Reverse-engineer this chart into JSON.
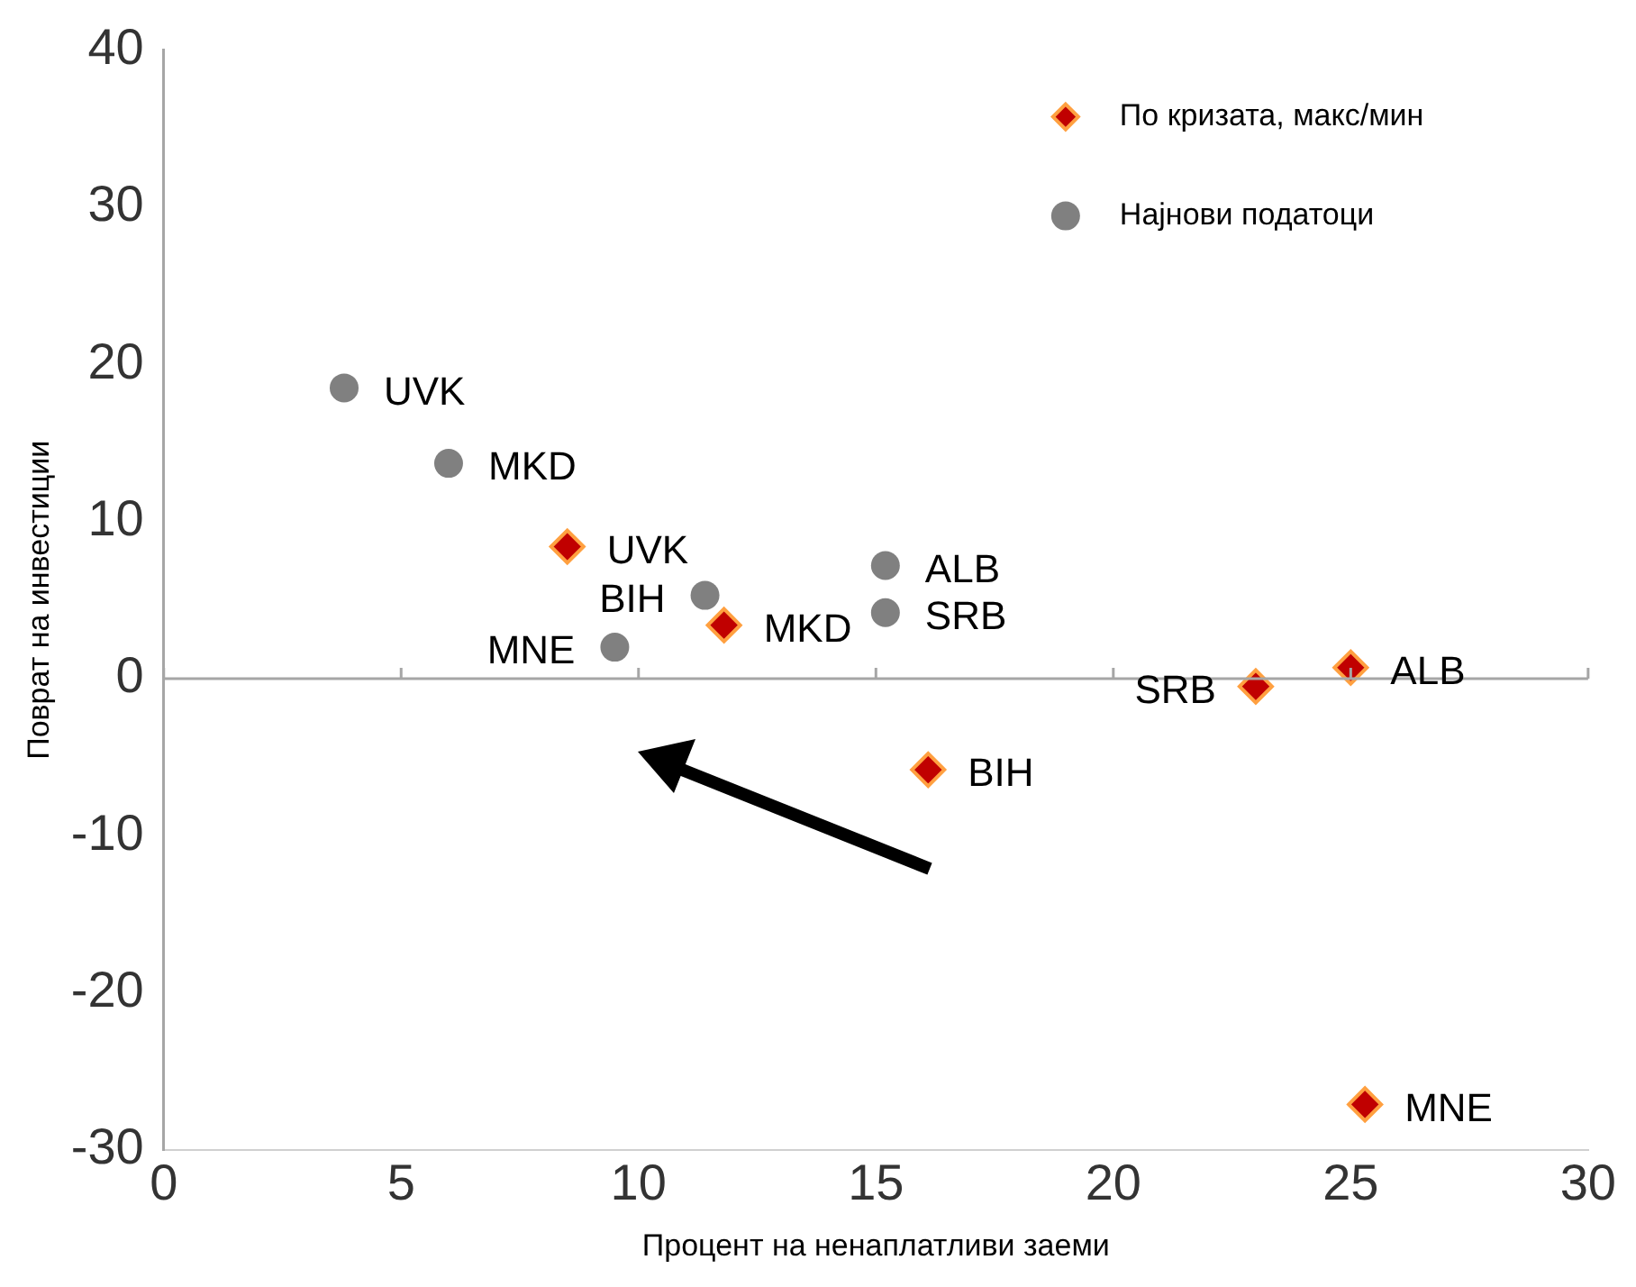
{
  "chart_data": {
    "type": "scatter",
    "xlabel": "Процент на ненаплатливи заеми",
    "ylabel": "Поврат на инвестиции",
    "xlim": [
      0,
      30
    ],
    "xticks": [
      0,
      5,
      10,
      15,
      20,
      25,
      30
    ],
    "ylim": [
      -30,
      40
    ],
    "yticks": [
      -30,
      -20,
      -10,
      0,
      10,
      20,
      30,
      40
    ],
    "grid": false,
    "legend": "top right",
    "ref_lines": [
      {
        "axis": "y",
        "value": 0,
        "color": "#a6a6a6"
      }
    ],
    "series": [
      {
        "name": "По кризата, макс/мин",
        "color": "#c00000",
        "marker": "diamond",
        "x": [
          8.5,
          11.8,
          16.1,
          23.0,
          25.0,
          25.3
        ],
        "values": [
          8.4,
          3.4,
          -5.8,
          -0.5,
          0.7,
          -27.1
        ]
      },
      {
        "name": "Најнови податоци",
        "color": "#808080",
        "marker": "circle",
        "x": [
          3.8,
          6.0,
          11.4,
          15.2,
          15.2,
          9.5
        ],
        "values": [
          18.5,
          13.7,
          5.3,
          7.2,
          4.2,
          2.0
        ]
      }
    ],
    "annotations": [
      {
        "text": "UVK",
        "x": 3.8,
        "y": 18.5
      },
      {
        "text": "MKD",
        "x": 6.0,
        "y": 13.7
      },
      {
        "text": "UVK",
        "x": 8.5,
        "y": 8.4
      },
      {
        "text": "BIH",
        "x": 11.4,
        "y": 5.3
      },
      {
        "text": "ALB",
        "x": 15.2,
        "y": 7.2
      },
      {
        "text": "SRB",
        "x": 15.2,
        "y": 4.2
      },
      {
        "text": "MNE",
        "x": 9.5,
        "y": 2.0
      },
      {
        "text": "MKD",
        "x": 11.8,
        "y": 3.4
      },
      {
        "text": "BIH",
        "x": 16.1,
        "y": -5.8
      },
      {
        "text": "SRB",
        "x": 23.0,
        "y": -0.5
      },
      {
        "text": "ALB",
        "x": 25.0,
        "y": 0.7
      },
      {
        "text": "MNE",
        "x": 25.3,
        "y": -27.1
      }
    ]
  }
}
